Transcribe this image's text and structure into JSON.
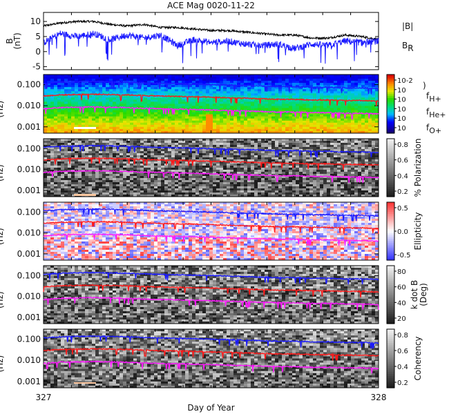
{
  "title": "ACE Mag 0020-11-22",
  "xlabel": "Day of Year",
  "x_ticks": [
    "327",
    "328"
  ],
  "colors": {
    "B_mag": "#000000",
    "B_R": "#1a1aff",
    "f_H": "#1a1aff",
    "f_He": "#ff1a1a",
    "f_O": "#ff1aff",
    "marker_white": "#ffffff",
    "marker_peach": "#ffc8a0"
  },
  "chart_data": [
    {
      "type": "line",
      "panel": "magnetic-field",
      "ylabel": "B (nT)",
      "x_range": [
        327,
        328
      ],
      "ylim": [
        -6,
        13
      ],
      "y_ticks": [
        "10",
        "5",
        "0",
        "-5"
      ],
      "legend": [
        "|B|",
        "B_R"
      ],
      "legend_text": {
        "B_mag": "|B|",
        "B_R_main": "B",
        "B_R_sub": "R"
      },
      "series": [
        {
          "name": "|B|",
          "color": "#000000",
          "x": [
            327.0,
            327.05,
            327.1,
            327.15,
            327.2,
            327.25,
            327.3,
            327.35,
            327.4,
            327.45,
            327.5,
            327.55,
            327.6,
            327.65,
            327.7,
            327.75,
            327.8,
            327.85,
            327.9,
            327.95,
            328.0
          ],
          "values": [
            8.5,
            9.5,
            10.0,
            10.0,
            9.0,
            8.5,
            9.0,
            8.0,
            8.0,
            7.5,
            7.0,
            7.0,
            6.5,
            6.0,
            5.5,
            5.5,
            4.5,
            4.5,
            5.5,
            5.0,
            4.0
          ]
        },
        {
          "name": "B_R",
          "color": "#1a1aff",
          "x": [
            327.0,
            327.05,
            327.1,
            327.15,
            327.2,
            327.25,
            327.3,
            327.35,
            327.4,
            327.45,
            327.5,
            327.55,
            327.6,
            327.65,
            327.7,
            327.75,
            327.8,
            327.85,
            327.9,
            327.95,
            328.0
          ],
          "values": [
            3.0,
            6.0,
            5.0,
            6.0,
            4.0,
            5.5,
            4.5,
            5.5,
            2.0,
            4.0,
            3.0,
            3.5,
            2.5,
            2.0,
            2.5,
            1.0,
            2.5,
            2.0,
            3.5,
            3.0,
            3.5
          ]
        }
      ]
    },
    {
      "type": "heatmap",
      "panel": "power-spectrum",
      "ylabel": "(Hz)",
      "yscale": "log",
      "ylim": [
        0.0005,
        0.3
      ],
      "y_ticks": [
        "0.100",
        "0.010",
        "0.001"
      ],
      "colorbar": {
        "colormap": "rainbow",
        "ticks": [
          "10-2",
          "10",
          "10",
          "10",
          "10",
          "10"
        ],
        "label": ")"
      },
      "legend": [
        "fH+",
        "fHe+",
        "fO+"
      ]
    },
    {
      "type": "heatmap",
      "panel": "polarization",
      "ylabel": "(Hz)",
      "yscale": "log",
      "y_ticks": [
        "0.100",
        "0.010",
        "0.001"
      ],
      "colorbar": {
        "colormap": "gray",
        "ticks": [
          "0.8",
          "0.6",
          "0.4",
          "0.2"
        ],
        "label": "% Polarization"
      }
    },
    {
      "type": "heatmap",
      "panel": "ellipticity",
      "ylabel": "(Hz)",
      "yscale": "log",
      "y_ticks": [
        "0.100",
        "0.010",
        "0.001"
      ],
      "colorbar": {
        "colormap": "blue-white-red",
        "ticks": [
          "0.5",
          "0.0",
          "-0.5"
        ],
        "label": "Ellipticity"
      }
    },
    {
      "type": "heatmap",
      "panel": "k-dot-b",
      "ylabel": "(Hz)",
      "yscale": "log",
      "y_ticks": [
        "0.100",
        "0.010",
        "0.001"
      ],
      "colorbar": {
        "colormap": "gray",
        "ticks": [
          "80",
          "60",
          "40",
          "20"
        ],
        "label": "k dot B (Deg)"
      }
    },
    {
      "type": "heatmap",
      "panel": "coherency",
      "ylabel": "(Hz)",
      "yscale": "log",
      "y_ticks": [
        "0.100",
        "0.010",
        "0.001"
      ],
      "colorbar": {
        "colormap": "gray",
        "ticks": [
          "0.8",
          "0.6",
          "0.4",
          "0.2"
        ],
        "label": "Coherency"
      }
    }
  ],
  "gyrofrequency_lines": {
    "x": [
      327.0,
      327.05,
      327.1,
      327.15,
      327.2,
      327.25,
      327.3,
      327.35,
      327.4,
      327.45,
      327.5,
      327.55,
      327.6,
      327.65,
      327.7,
      327.75,
      327.8,
      327.85,
      327.9,
      327.95,
      328.0
    ],
    "fH": [
      0.115,
      0.13,
      0.135,
      0.14,
      0.135,
      0.13,
      0.12,
      0.115,
      0.11,
      0.105,
      0.1,
      0.095,
      0.09,
      0.085,
      0.08,
      0.08,
      0.075,
      0.075,
      0.07,
      0.07,
      0.065
    ],
    "fHe_ratio": 0.25,
    "fO_ratio": 0.0625
  },
  "legend_labels": {
    "H_main": "f",
    "H_sub": "H+",
    "He_main": "f",
    "He_sub": "He+",
    "O_main": "f",
    "O_sub": "O+"
  }
}
